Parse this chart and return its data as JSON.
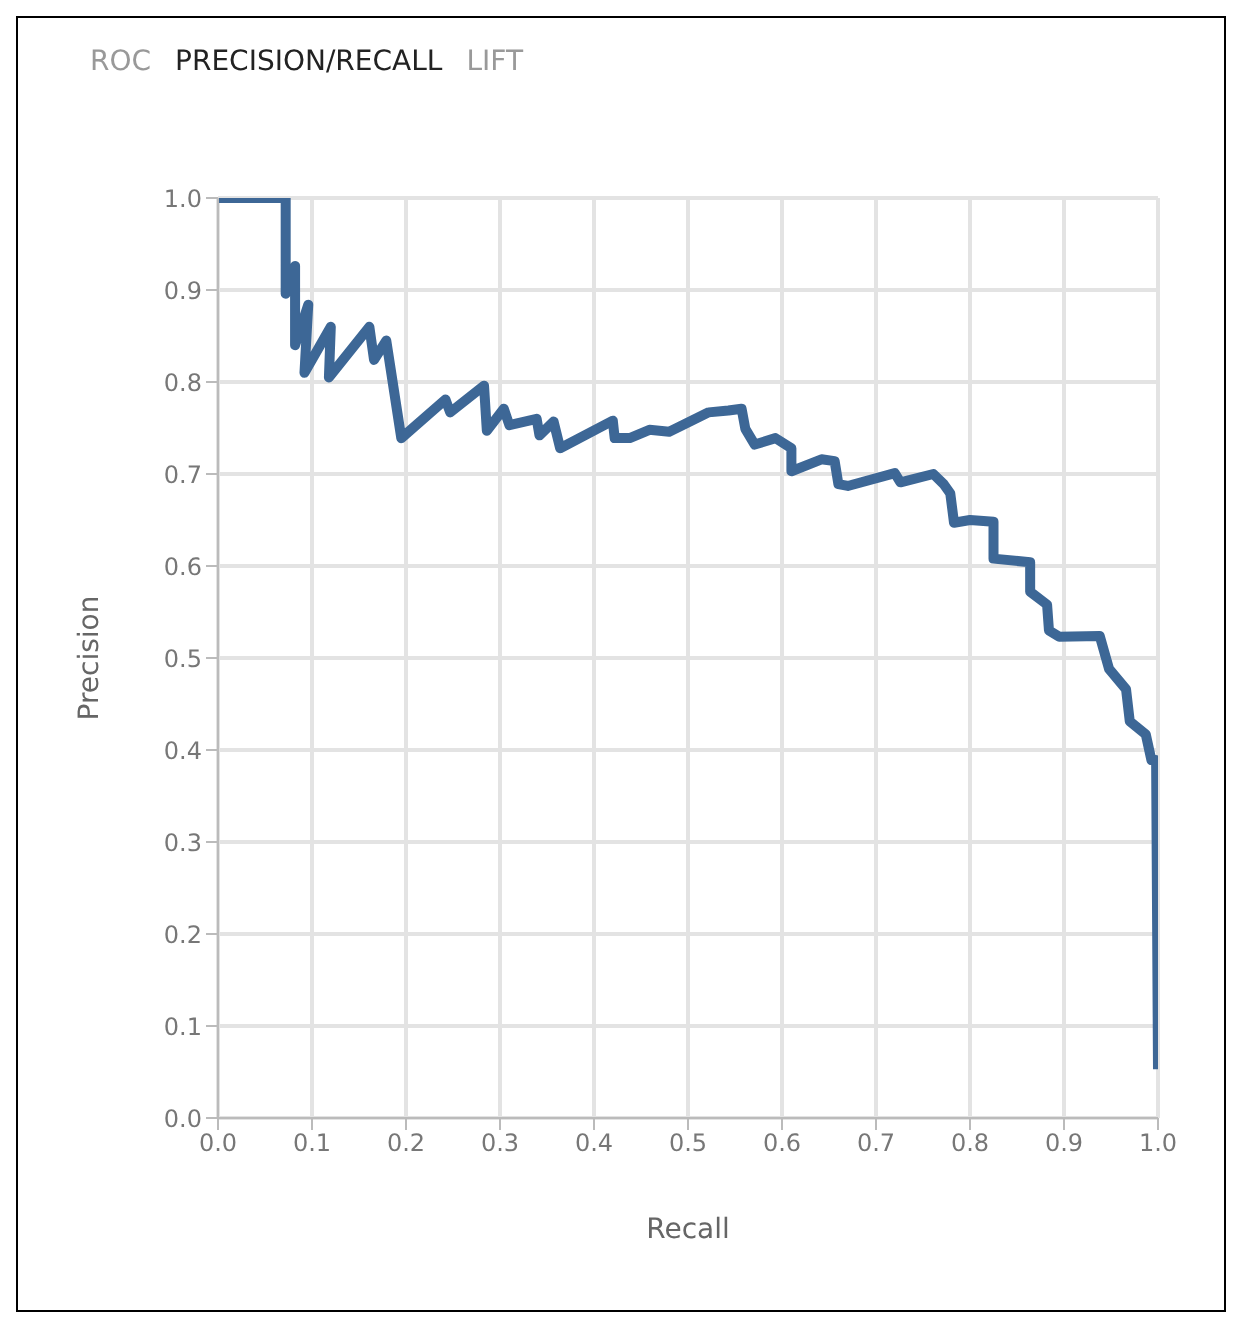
{
  "chart_data": {
    "type": "line",
    "title": "PRECISION/RECALL",
    "annotations": [
      "ROC",
      "LIFT"
    ],
    "xlabel": "Recall",
    "ylabel": "Precision",
    "xlim": [
      0,
      1
    ],
    "ylim": [
      0,
      1
    ],
    "xticks": [
      {
        "value": 0,
        "label": "0.0"
      },
      0.1,
      0.2,
      0.3,
      0.4,
      0.5,
      0.6,
      0.7,
      0.8,
      0.9,
      {
        "value": 1,
        "label": "1.0"
      }
    ],
    "yticks": [
      {
        "value": 0,
        "label": "0.0"
      },
      0.1,
      0.2,
      0.3,
      0.4,
      0.5,
      0.6,
      0.7,
      0.8,
      0.9,
      {
        "value": 1,
        "label": "1.0"
      }
    ],
    "grid": true,
    "marker": "none",
    "line_style": "solid",
    "series": [
      {
        "color": "#3d6796",
        "x": [
          0,
          0.072,
          0.072,
          0.082,
          0.082,
          0.096,
          0.092,
          0.12,
          0.118,
          0.161,
          0.166,
          0.179,
          0.195,
          0.242,
          0.247,
          0.283,
          0.286,
          0.304,
          0.31,
          0.339,
          0.342,
          0.357,
          0.364,
          0.42,
          0.422,
          0.438,
          0.459,
          0.48,
          0.522,
          0.543,
          0.557,
          0.561,
          0.571,
          0.593,
          0.61,
          0.61,
          0.642,
          0.656,
          0.66,
          0.67,
          0.72,
          0.726,
          0.761,
          0.772,
          0.779,
          0.783,
          0.8,
          0.825,
          0.825,
          0.864,
          0.864,
          0.882,
          0.884,
          0.895,
          0.938,
          0.948,
          0.966,
          0.97,
          0.987,
          0.993,
          0.998,
          1.0
        ],
        "values": [
          1,
          1,
          0.896,
          0.926,
          0.84,
          0.884,
          0.81,
          0.86,
          0.805,
          0.86,
          0.824,
          0.845,
          0.739,
          0.781,
          0.767,
          0.796,
          0.747,
          0.771,
          0.753,
          0.76,
          0.742,
          0.757,
          0.728,
          0.758,
          0.739,
          0.739,
          0.748,
          0.746,
          0.767,
          0.769,
          0.771,
          0.749,
          0.732,
          0.739,
          0.728,
          0.703,
          0.716,
          0.714,
          0.689,
          0.687,
          0.701,
          0.691,
          0.7,
          0.689,
          0.679,
          0.647,
          0.65,
          0.648,
          0.608,
          0.604,
          0.572,
          0.558,
          0.53,
          0.523,
          0.524,
          0.488,
          0.466,
          0.431,
          0.417,
          0.389,
          0.389,
          0.053
        ]
      }
    ]
  }
}
